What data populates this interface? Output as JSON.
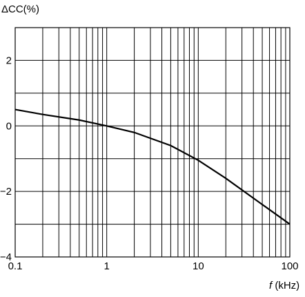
{
  "chart_data": {
    "type": "line",
    "title": "",
    "ylabel": "ΔCC(%)",
    "xlabel_italic": "f",
    "xlabel_unit": " (kHz)",
    "x_scale": "log",
    "xlim": [
      0.1,
      100
    ],
    "ylim": [
      -4,
      3
    ],
    "grid": true,
    "x_ticks": [
      0.1,
      1,
      10,
      100
    ],
    "x_tick_labels": [
      "0.1",
      "1",
      "10",
      "100"
    ],
    "y_ticks": [
      2,
      0,
      -2,
      -4
    ],
    "y_tick_labels": [
      "2",
      "0",
      "−2",
      "−4"
    ],
    "series": [
      {
        "x": [
          0.1,
          0.2,
          0.5,
          1,
          2,
          5,
          10,
          20,
          50,
          100
        ],
        "y": [
          0.5,
          0.35,
          0.18,
          0.0,
          -0.2,
          -0.6,
          -1.05,
          -1.6,
          -2.4,
          -3.0
        ]
      }
    ]
  }
}
